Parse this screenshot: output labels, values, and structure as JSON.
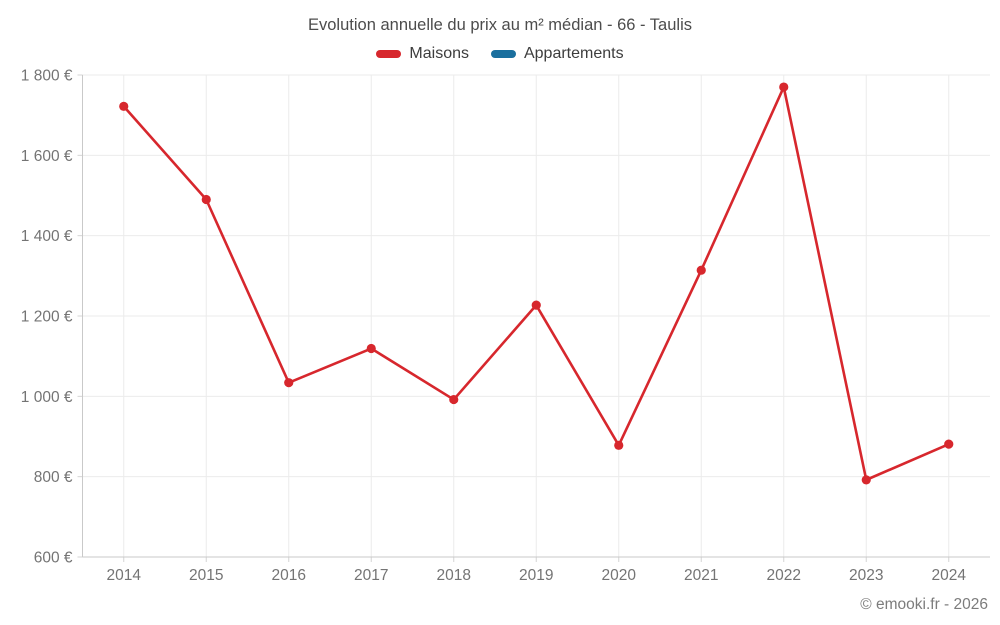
{
  "chart_data": {
    "type": "line",
    "title": "Evolution annuelle du prix au m² médian - 66 - Taulis",
    "categories": [
      "2014",
      "2015",
      "2016",
      "2017",
      "2018",
      "2019",
      "2020",
      "2021",
      "2022",
      "2023",
      "2024"
    ],
    "series": [
      {
        "name": "Maisons",
        "color": "#d7272d",
        "values": [
          1722,
          1490,
          1034,
          1119,
          992,
          1227,
          878,
          1314,
          1770,
          792,
          881
        ]
      },
      {
        "name": "Appartements",
        "color": "#1a6f9e",
        "values": []
      }
    ],
    "xlabel": "",
    "ylabel": "",
    "ylim": [
      600,
      1800
    ],
    "ytick_step": 200,
    "ytick_labels": [
      "600 €",
      "800 €",
      "1 000 €",
      "1 200 €",
      "1 400 €",
      "1 600 €",
      "1 800 €"
    ],
    "grid": true,
    "legend_position": "top"
  },
  "footer": {
    "credit": "© emooki.fr - 2026"
  }
}
